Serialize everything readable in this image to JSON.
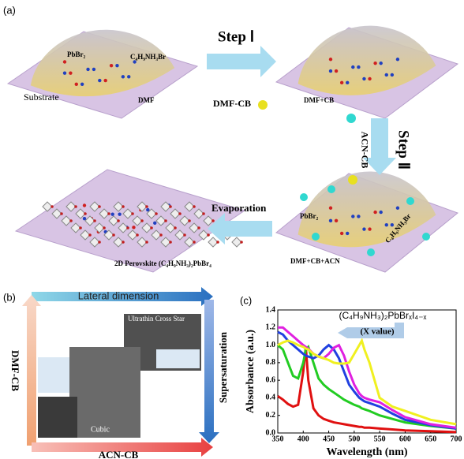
{
  "figure": {
    "panel_a": {
      "label": "(a)",
      "substrate": "Substrate",
      "pbbr2": "PbBr₂",
      "amine": "C₄H₉NH₃Br",
      "dmf": "DMF",
      "step1": "Step Ⅰ",
      "dmf_cb": "DMF-CB",
      "dmf_plus_cb": "DMF+CB",
      "step2": "Step Ⅱ",
      "acn_cb": "ACN-CB",
      "evaporation": "Evaporation",
      "dmf_cb_acn": "DMF+CB+ACN",
      "pbbr2_b": "PbBr₂",
      "amine_b": "C₄H₉NH₃Br",
      "product": "2D Perovskite (C₄H₉NH₃)₂PbBr₄"
    },
    "panel_b": {
      "label": "(b)",
      "top": "Lateral dimension",
      "left": "DMF-CB",
      "right": "Supersaturation",
      "bottom": "ACN-CB",
      "star": "Ultrathin Cross Star",
      "cubic": "Cubic"
    }
  },
  "chart_data": {
    "type": "line",
    "label": "(c)",
    "xlabel": "Wavelength (nm)",
    "ylabel": "Absorbance (a.u.)",
    "annotation": "(C₄H₉NH₃)₂PbBrₓI₄₋ₓ",
    "annotation_sub": "(X value)",
    "xlim": [
      350,
      700
    ],
    "ylim": [
      0,
      1.4
    ],
    "xticks": [
      350,
      400,
      450,
      500,
      550,
      600,
      650,
      700
    ],
    "yticks": [
      {
        "value": 0,
        "label": "0.0"
      },
      0.2,
      0.4,
      0.6,
      0.8,
      {
        "value": 1,
        "label": "1.0"
      },
      1.2,
      1.4
    ],
    "x": [
      350,
      360,
      370,
      380,
      390,
      400,
      405,
      410,
      420,
      430,
      440,
      450,
      460,
      470,
      480,
      490,
      500,
      510,
      515,
      520,
      530,
      550,
      575,
      600,
      650,
      700
    ],
    "series": [
      {
        "color": "#e01010",
        "values": [
          0.42,
          0.38,
          0.33,
          0.3,
          0.32,
          0.7,
          0.98,
          0.6,
          0.28,
          0.2,
          0.16,
          0.14,
          0.12,
          0.11,
          0.1,
          0.09,
          0.08,
          0.07,
          0.07,
          0.06,
          0.06,
          0.05,
          0.04,
          0.03,
          0.02,
          0.01
        ]
      },
      {
        "color": "#22cc22",
        "values": [
          1.0,
          0.95,
          0.8,
          0.65,
          0.62,
          0.8,
          0.95,
          0.98,
          0.8,
          0.62,
          0.55,
          0.5,
          0.46,
          0.42,
          0.38,
          0.35,
          0.32,
          0.3,
          0.28,
          0.27,
          0.25,
          0.2,
          0.16,
          0.12,
          0.08,
          0.05
        ]
      },
      {
        "color": "#2040e0",
        "values": [
          1.15,
          1.12,
          1.05,
          1.0,
          0.95,
          0.9,
          0.88,
          0.87,
          0.85,
          0.88,
          0.95,
          1.0,
          0.95,
          0.85,
          0.7,
          0.55,
          0.47,
          0.4,
          0.38,
          0.36,
          0.34,
          0.3,
          0.22,
          0.15,
          0.09,
          0.05
        ]
      },
      {
        "color": "#e020e0",
        "values": [
          1.2,
          1.2,
          1.15,
          1.1,
          1.05,
          1.0,
          0.98,
          0.96,
          0.9,
          0.87,
          0.85,
          0.9,
          0.97,
          1.0,
          0.88,
          0.7,
          0.55,
          0.45,
          0.42,
          0.4,
          0.38,
          0.35,
          0.26,
          0.18,
          0.1,
          0.06
        ]
      },
      {
        "color": "#f0f020",
        "values": [
          1.0,
          1.03,
          1.05,
          1.03,
          1.0,
          0.98,
          0.96,
          0.95,
          0.9,
          0.87,
          0.85,
          0.83,
          0.8,
          0.79,
          0.79,
          0.8,
          0.9,
          1.0,
          1.05,
          0.95,
          0.8,
          0.4,
          0.3,
          0.25,
          0.15,
          0.1
        ]
      }
    ]
  }
}
